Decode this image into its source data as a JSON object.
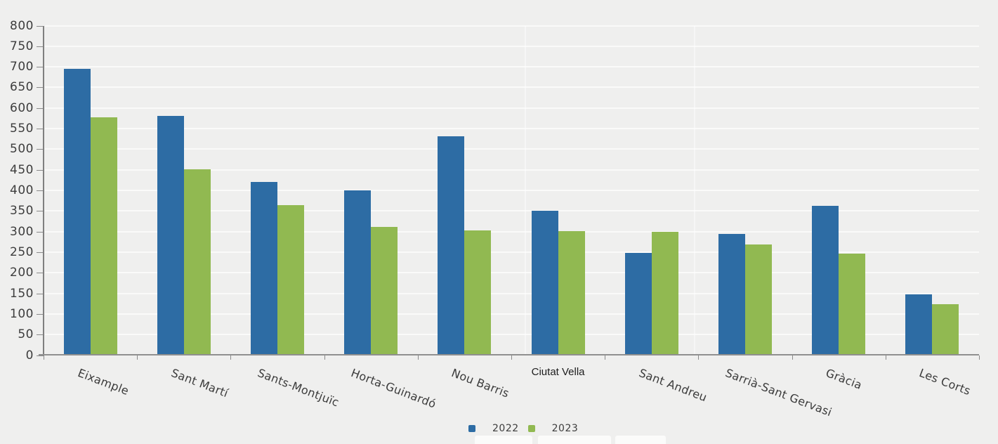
{
  "chart_data": {
    "type": "bar",
    "title": "",
    "xlabel": "",
    "ylabel": "",
    "categories": [
      "Eixample",
      "Sant Martí",
      "Sants-Montjuïc",
      "Horta-Guinardó",
      "Nou Barris",
      "Ciutat Vella",
      "Sant Andreu",
      "Sarrià-Sant Gervasi",
      "Gràcia",
      "Les Corts"
    ],
    "category_label_styles": [
      "rotated",
      "rotated",
      "rotated",
      "rotated",
      "rotated",
      "horizontal",
      "rotated",
      "rotated",
      "rotated",
      "rotated"
    ],
    "highlighted_category": "Ciutat Vella",
    "series": [
      {
        "name": "2022",
        "color": "#2d6ca4",
        "values": [
          695,
          580,
          421,
          400,
          532,
          350,
          248,
          295,
          363,
          148
        ]
      },
      {
        "name": "2023",
        "color": "#91b951",
        "values": [
          577,
          452,
          364,
          312,
          303,
          301,
          299,
          268,
          246,
          123
        ]
      }
    ],
    "ylim": [
      0,
      800
    ],
    "ytick_step": 50,
    "yticks": [
      0,
      50,
      100,
      150,
      200,
      250,
      300,
      350,
      400,
      450,
      500,
      550,
      600,
      650,
      700,
      750,
      800
    ],
    "grid": true,
    "legend_position": "bottom-center",
    "legend": [
      "2022",
      "2023"
    ],
    "colors": {
      "background": "#efefee",
      "gridline": "#fafafa",
      "axis": "#8a8a8a",
      "tick_text": "#3d3d3d",
      "series_2022": "#2d6ca4",
      "series_2023": "#91b951"
    }
  }
}
